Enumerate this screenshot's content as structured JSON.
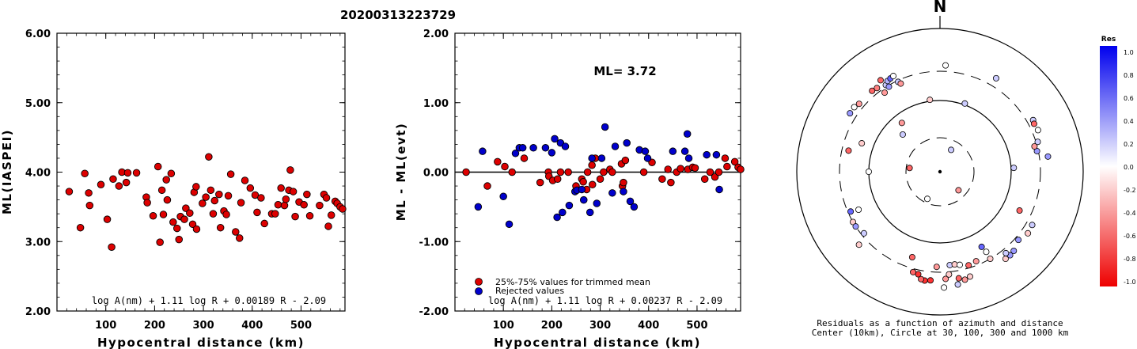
{
  "title": "20200313223729",
  "colors": {
    "red": "#dd0000",
    "blue": "#0000cc"
  },
  "chart_data": [
    {
      "type": "scatter",
      "xlabel": "Hypocentral distance (km)",
      "ylabel": "ML(IASPEI)",
      "xlim": [
        0,
        590
      ],
      "ylim": [
        2.0,
        6.0
      ],
      "xticks": [
        100,
        200,
        300,
        400,
        500
      ],
      "xtick_labels": [
        "100",
        "200",
        "300",
        "400",
        "500"
      ],
      "yticks": [
        2.0,
        3.0,
        4.0,
        5.0,
        6.0
      ],
      "ytick_labels": [
        "2.00",
        "3.00",
        "4.00",
        "5.00",
        "6.00"
      ],
      "annotation": "log A(nm) + 1.11 log R + 0.00189 R - 2.09",
      "series": [
        {
          "color": "#dd0000",
          "points": [
            [
              25,
              3.72
            ],
            [
              48,
              3.2
            ],
            [
              57,
              3.98
            ],
            [
              65,
              3.7
            ],
            [
              67,
              3.52
            ],
            [
              90,
              3.82
            ],
            [
              103,
              3.32
            ],
            [
              112,
              2.92
            ],
            [
              115,
              3.9
            ],
            [
              127,
              3.8
            ],
            [
              133,
              4.0
            ],
            [
              142,
              3.85
            ],
            [
              145,
              3.99
            ],
            [
              163,
              3.99
            ],
            [
              183,
              3.64
            ],
            [
              185,
              3.56
            ],
            [
              197,
              3.37
            ],
            [
              207,
              4.08
            ],
            [
              211,
              2.99
            ],
            [
              215,
              3.74
            ],
            [
              218,
              3.39
            ],
            [
              224,
              3.89
            ],
            [
              226,
              3.6
            ],
            [
              234,
              3.98
            ],
            [
              238,
              3.28
            ],
            [
              246,
              3.19
            ],
            [
              250,
              3.03
            ],
            [
              253,
              3.36
            ],
            [
              261,
              3.32
            ],
            [
              264,
              3.48
            ],
            [
              272,
              3.41
            ],
            [
              278,
              3.25
            ],
            [
              281,
              3.71
            ],
            [
              285,
              3.79
            ],
            [
              286,
              3.18
            ],
            [
              298,
              3.55
            ],
            [
              305,
              3.64
            ],
            [
              311,
              4.22
            ],
            [
              315,
              3.74
            ],
            [
              320,
              3.4
            ],
            [
              323,
              3.59
            ],
            [
              332,
              3.68
            ],
            [
              335,
              3.2
            ],
            [
              342,
              3.44
            ],
            [
              347,
              3.39
            ],
            [
              351,
              3.66
            ],
            [
              356,
              3.97
            ],
            [
              366,
              3.14
            ],
            [
              374,
              3.05
            ],
            [
              377,
              3.56
            ],
            [
              385,
              3.88
            ],
            [
              396,
              3.77
            ],
            [
              406,
              3.67
            ],
            [
              410,
              3.42
            ],
            [
              418,
              3.63
            ],
            [
              425,
              3.26
            ],
            [
              440,
              3.4
            ],
            [
              447,
              3.4
            ],
            [
              453,
              3.53
            ],
            [
              459,
              3.77
            ],
            [
              466,
              3.52
            ],
            [
              469,
              3.61
            ],
            [
              475,
              3.74
            ],
            [
              478,
              4.03
            ],
            [
              484,
              3.72
            ],
            [
              488,
              3.36
            ],
            [
              496,
              3.57
            ],
            [
              506,
              3.53
            ],
            [
              512,
              3.68
            ],
            [
              518,
              3.37
            ],
            [
              538,
              3.52
            ],
            [
              547,
              3.68
            ],
            [
              552,
              3.63
            ],
            [
              556,
              3.22
            ],
            [
              562,
              3.38
            ],
            [
              570,
              3.58
            ],
            [
              574,
              3.55
            ],
            [
              580,
              3.5
            ],
            [
              585,
              3.47
            ]
          ]
        }
      ]
    },
    {
      "type": "scatter",
      "xlabel": "Hypocentral distance (km)",
      "ylabel": "ML - ML(evt)",
      "xlim": [
        0,
        590
      ],
      "ylim": [
        -2.0,
        2.0
      ],
      "xticks": [
        100,
        200,
        300,
        400,
        500
      ],
      "xtick_labels": [
        "100",
        "200",
        "300",
        "400",
        "500"
      ],
      "yticks": [
        -2.0,
        -1.0,
        0.0,
        1.0,
        2.0
      ],
      "ytick_labels": [
        "-2.00",
        "-1.00",
        "0.00",
        "1.00",
        "2.00"
      ],
      "ml_label": "ML= 3.72",
      "annotation": "log A(nm) + 1.11 log R + 0.00237 R - 2.09",
      "series": [
        {
          "name": "25%-75% values for trimmed mean",
          "color": "#dd0000",
          "points": [
            [
              23,
              0.0
            ],
            [
              67,
              -0.2
            ],
            [
              88,
              0.15
            ],
            [
              103,
              0.08
            ],
            [
              118,
              0.0
            ],
            [
              143,
              0.2
            ],
            [
              176,
              -0.15
            ],
            [
              193,
              0.0
            ],
            [
              194,
              -0.06
            ],
            [
              202,
              -0.12
            ],
            [
              212,
              -0.1
            ],
            [
              218,
              0.0
            ],
            [
              234,
              0.0
            ],
            [
              250,
              -0.2
            ],
            [
              262,
              -0.1
            ],
            [
              265,
              -0.14
            ],
            [
              272,
              -0.25
            ],
            [
              274,
              0.0
            ],
            [
              283,
              0.1
            ],
            [
              284,
              -0.18
            ],
            [
              290,
              0.2
            ],
            [
              300,
              -0.1
            ],
            [
              307,
              0.0
            ],
            [
              320,
              0.04
            ],
            [
              325,
              0.0
            ],
            [
              344,
              0.12
            ],
            [
              346,
              -0.2
            ],
            [
              348,
              -0.15
            ],
            [
              352,
              0.17
            ],
            [
              390,
              0.0
            ],
            [
              407,
              0.14
            ],
            [
              428,
              -0.1
            ],
            [
              440,
              0.04
            ],
            [
              446,
              -0.15
            ],
            [
              458,
              0.0
            ],
            [
              466,
              0.05
            ],
            [
              481,
              0.04
            ],
            [
              491,
              0.07
            ],
            [
              496,
              0.06
            ],
            [
              516,
              -0.1
            ],
            [
              527,
              0.0
            ],
            [
              537,
              -0.07
            ],
            [
              545,
              0.0
            ],
            [
              558,
              0.2
            ],
            [
              562,
              0.08
            ],
            [
              578,
              0.15
            ],
            [
              585,
              0.07
            ],
            [
              590,
              0.04
            ]
          ]
        },
        {
          "name": "Rejected values",
          "color": "#0000cc",
          "points": [
            [
              48,
              -0.5
            ],
            [
              57,
              0.3
            ],
            [
              100,
              -0.35
            ],
            [
              112,
              -0.75
            ],
            [
              125,
              0.27
            ],
            [
              133,
              0.35
            ],
            [
              140,
              0.35
            ],
            [
              162,
              0.35
            ],
            [
              187,
              0.35
            ],
            [
              200,
              0.28
            ],
            [
              206,
              0.48
            ],
            [
              211,
              -0.65
            ],
            [
              218,
              0.42
            ],
            [
              222,
              -0.58
            ],
            [
              228,
              0.37
            ],
            [
              236,
              -0.48
            ],
            [
              248,
              -0.28
            ],
            [
              252,
              -0.26
            ],
            [
              262,
              -0.25
            ],
            [
              266,
              -0.4
            ],
            [
              279,
              -0.58
            ],
            [
              283,
              0.2
            ],
            [
              293,
              -0.45
            ],
            [
              303,
              0.2
            ],
            [
              310,
              0.65
            ],
            [
              325,
              -0.3
            ],
            [
              331,
              0.37
            ],
            [
              348,
              -0.28
            ],
            [
              355,
              0.42
            ],
            [
              362,
              -0.42
            ],
            [
              370,
              -0.5
            ],
            [
              381,
              0.32
            ],
            [
              393,
              0.3
            ],
            [
              398,
              0.2
            ],
            [
              450,
              0.3
            ],
            [
              475,
              0.3
            ],
            [
              480,
              0.55
            ],
            [
              483,
              0.2
            ],
            [
              520,
              0.25
            ],
            [
              540,
              0.25
            ],
            [
              546,
              -0.25
            ]
          ]
        }
      ]
    }
  ],
  "polar": {
    "north_label": "N",
    "center_dot": [
      [
        0,
        0
      ]
    ],
    "caption_line1": "Residuals as a function of azimuth and distance",
    "caption_line2": "Center (10km), Circle at 30, 100, 300 and 1000 km",
    "colorbar_title": "Res",
    "colorbar_ticks": [
      "1.0",
      "0.8",
      "0.6",
      "0.4",
      "0.2",
      "0.0",
      "-0.2",
      "-0.4",
      "-0.6",
      "-0.8",
      "-1.0"
    ],
    "stations": [
      {
        "az": 3,
        "dist": 1.57,
        "res": 0.0
      },
      {
        "az": 352,
        "dist": 1.29,
        "res": -0.2
      },
      {
        "az": 20,
        "dist": 1.29,
        "res": 0.2
      },
      {
        "az": 31,
        "dist": 1.6,
        "res": 0.2
      },
      {
        "az": 320,
        "dist": 1.56,
        "res": -0.6
      },
      {
        "az": 323,
        "dist": 1.55,
        "res": -0.5
      },
      {
        "az": 328,
        "dist": 1.52,
        "res": 0.2
      },
      {
        "az": 330,
        "dist": 1.55,
        "res": 0.3
      },
      {
        "az": 327,
        "dist": 1.6,
        "res": -0.6
      },
      {
        "az": 332,
        "dist": 1.56,
        "res": 0.6
      },
      {
        "az": 334,
        "dist": 1.57,
        "res": 0.0
      },
      {
        "az": 329,
        "dist": 1.49,
        "res": 0.4
      },
      {
        "az": 325,
        "dist": 1.47,
        "res": -0.4
      },
      {
        "az": 335,
        "dist": 1.49,
        "res": 0.2
      },
      {
        "az": 336,
        "dist": 1.47,
        "res": -0.4
      },
      {
        "az": 310,
        "dist": 1.56,
        "res": -0.4
      },
      {
        "az": 303,
        "dist": 1.58,
        "res": 0.4
      },
      {
        "az": 307,
        "dist": 1.58,
        "res": 0.0
      },
      {
        "az": 322,
        "dist": 1.21,
        "res": -0.4
      },
      {
        "az": 315,
        "dist": 1.14,
        "res": 0.2
      },
      {
        "az": 61,
        "dist": 1.57,
        "res": 0.2
      },
      {
        "az": 63,
        "dist": 1.56,
        "res": -0.6
      },
      {
        "az": 67,
        "dist": 1.57,
        "res": 0.0
      },
      {
        "az": 73,
        "dist": 1.52,
        "res": 0.2
      },
      {
        "az": 78,
        "dist": 1.49,
        "res": 0.4
      },
      {
        "az": 82,
        "dist": 1.6,
        "res": 0.4
      },
      {
        "az": 75,
        "dist": 1.48,
        "res": -0.4
      },
      {
        "az": 87,
        "dist": 1.3,
        "res": 0.2
      },
      {
        "az": 283,
        "dist": 1.45,
        "res": -0.6
      },
      {
        "az": 270,
        "dist": 1.28,
        "res": 0.0
      },
      {
        "az": 290,
        "dist": 1.37,
        "res": -0.2
      },
      {
        "az": 246,
        "dist": 1.48,
        "res": 0.6
      },
      {
        "az": 240,
        "dist": 1.5,
        "res": -0.2
      },
      {
        "az": 245,
        "dist": 1.42,
        "res": 0.0
      },
      {
        "az": 237,
        "dist": 1.5,
        "res": 0.4
      },
      {
        "az": 231,
        "dist": 1.48,
        "res": 0.2
      },
      {
        "az": 228,
        "dist": 1.6,
        "res": -0.2
      },
      {
        "az": 120,
        "dist": 1.57,
        "res": 0.2
      },
      {
        "az": 125,
        "dist": 1.58,
        "res": -0.2
      },
      {
        "az": 116,
        "dist": 1.41,
        "res": -0.6
      },
      {
        "az": 131,
        "dist": 1.54,
        "res": 0.4
      },
      {
        "az": 137,
        "dist": 1.59,
        "res": 0.4
      },
      {
        "az": 140,
        "dist": 1.6,
        "res": 0.4
      },
      {
        "az": 141,
        "dist": 1.55,
        "res": 0.2
      },
      {
        "az": 151,
        "dist": 1.39,
        "res": 0.6
      },
      {
        "az": 150,
        "dist": 1.5,
        "res": -0.2
      },
      {
        "az": 143,
        "dist": 1.6,
        "res": -0.2
      },
      {
        "az": 150,
        "dist": 1.44,
        "res": 0.0
      },
      {
        "az": 198,
        "dist": 1.42,
        "res": -0.6
      },
      {
        "az": 192,
        "dist": 1.55,
        "res": -0.8
      },
      {
        "az": 195,
        "dist": 1.54,
        "res": -0.6
      },
      {
        "az": 188,
        "dist": 1.61,
        "res": -0.8
      },
      {
        "az": 190,
        "dist": 1.6,
        "res": -0.6
      },
      {
        "az": 185,
        "dist": 1.6,
        "res": -0.8
      },
      {
        "az": 177,
        "dist": 1.58,
        "res": -0.4
      },
      {
        "az": 182,
        "dist": 1.46,
        "res": -0.4
      },
      {
        "az": 174,
        "dist": 1.45,
        "res": 0.2
      },
      {
        "az": 171,
        "dist": 1.45,
        "res": -0.2
      },
      {
        "az": 168,
        "dist": 1.46,
        "res": 0.0
      },
      {
        "az": 163,
        "dist": 1.48,
        "res": -0.6
      },
      {
        "az": 158,
        "dist": 1.47,
        "res": -0.4
      },
      {
        "az": 175,
        "dist": 1.53,
        "res": -0.2
      },
      {
        "az": 170,
        "dist": 1.59,
        "res": -0.6
      },
      {
        "az": 167,
        "dist": 1.62,
        "res": -0.4
      },
      {
        "az": 164,
        "dist": 1.6,
        "res": -0.2
      },
      {
        "az": 178,
        "dist": 1.68,
        "res": 0.0
      },
      {
        "az": 171,
        "dist": 1.66,
        "res": 0.2
      },
      {
        "az": 205,
        "dist": 0.88,
        "res": 0.0
      },
      {
        "az": 135,
        "dist": 0.77,
        "res": -0.4
      },
      {
        "az": 277,
        "dist": 0.9,
        "res": -0.6
      },
      {
        "az": 27,
        "dist": 0.72,
        "res": 0.2
      }
    ]
  }
}
